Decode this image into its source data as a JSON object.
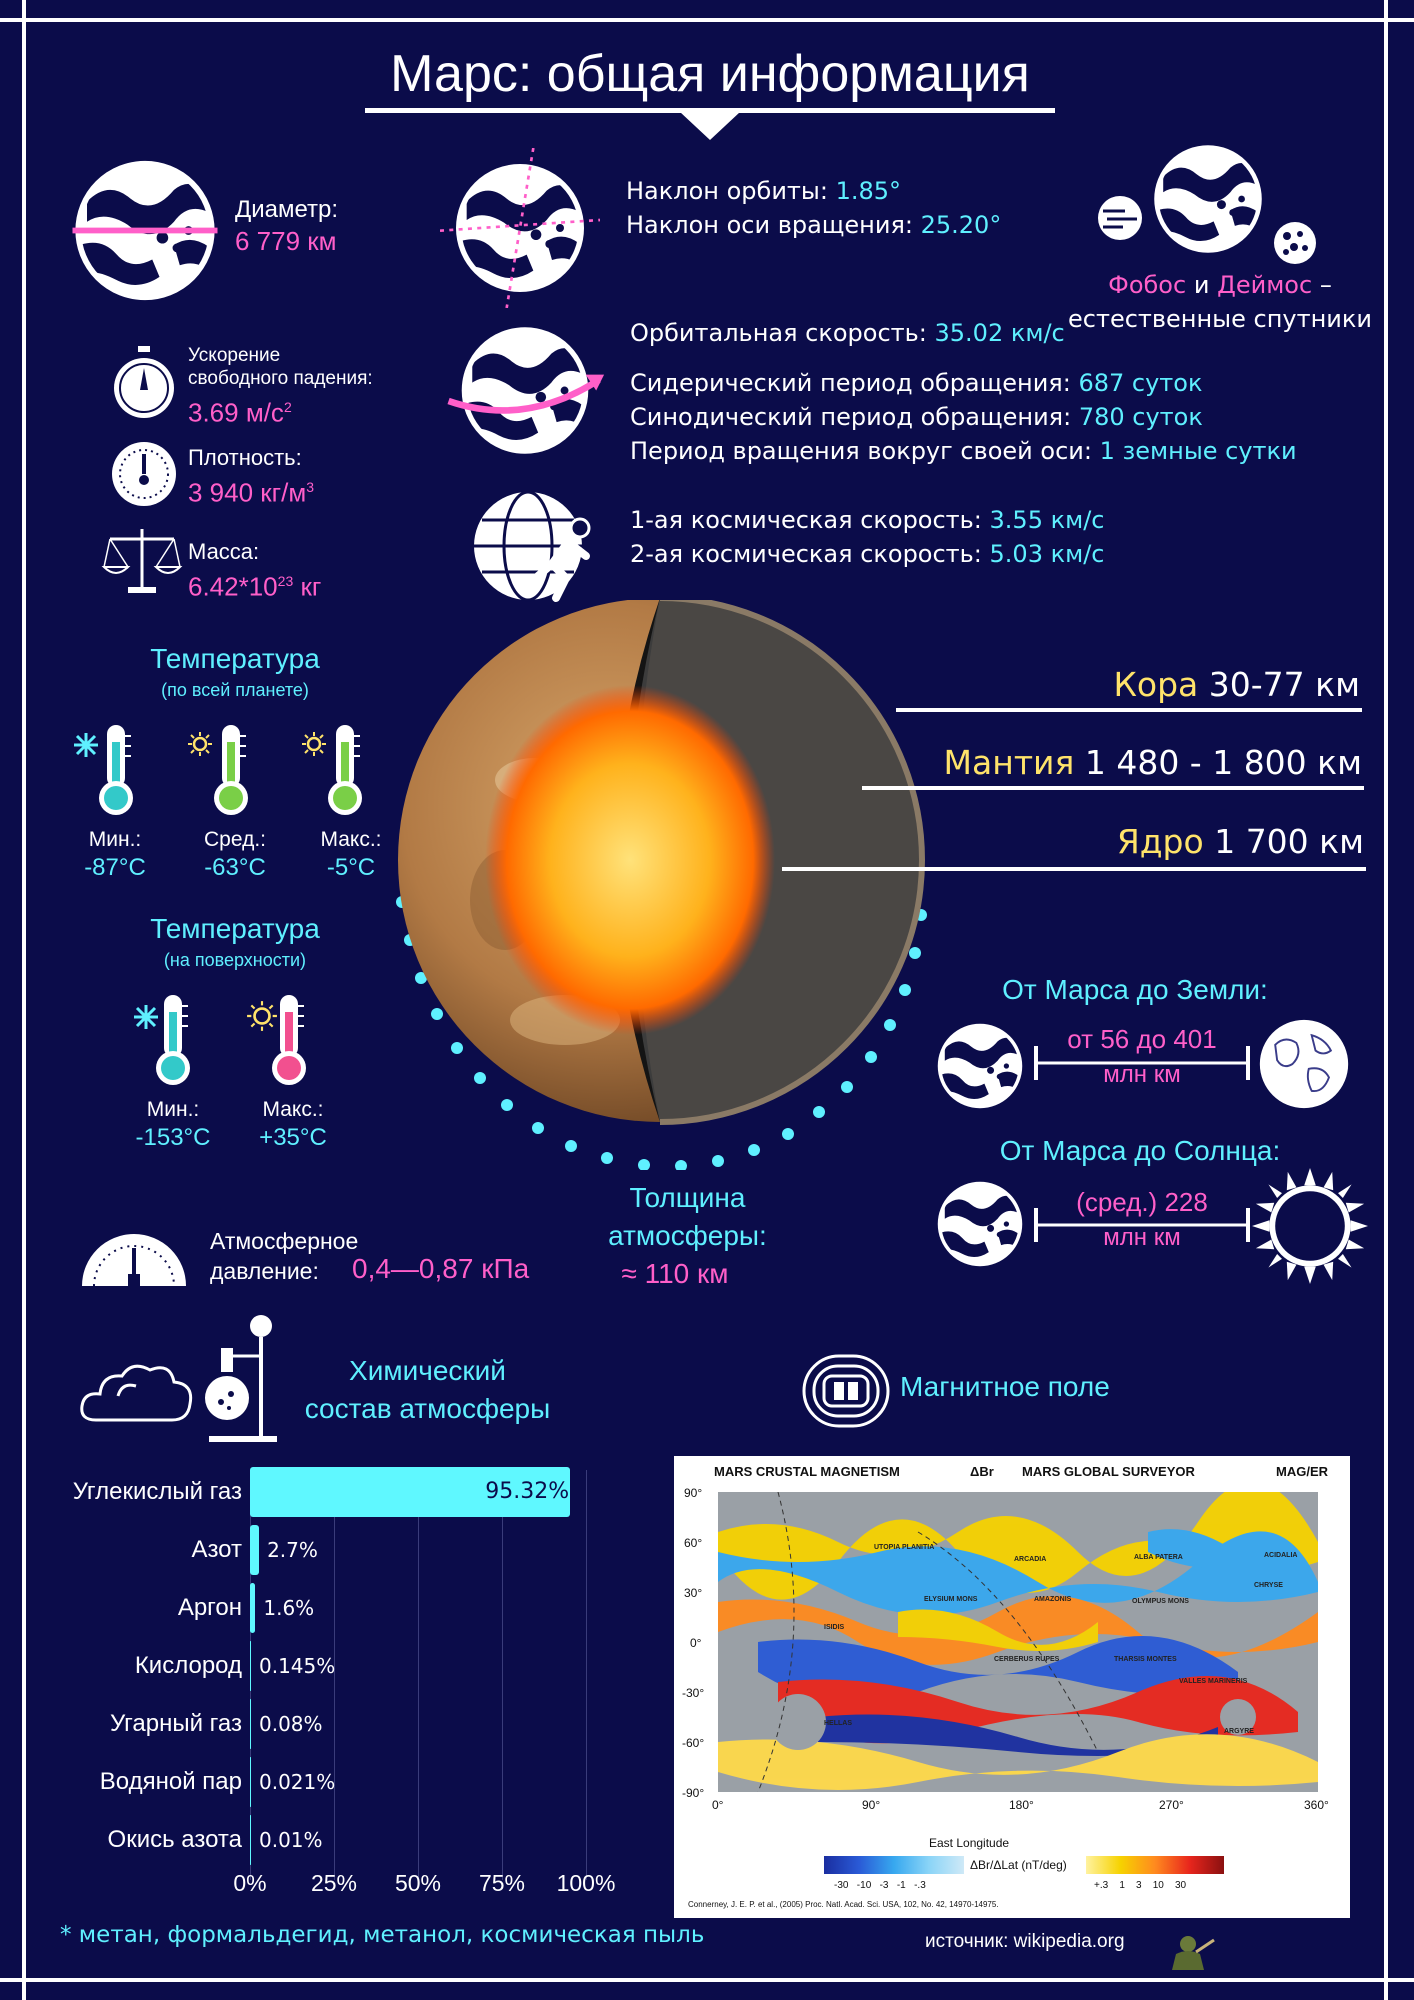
{
  "title": "Марс: общая информация",
  "diameter": {
    "label": "Диаметр:",
    "value": "6 779 км"
  },
  "orbit_tilt": {
    "label": "Наклон орбиты:",
    "value": "1.85°"
  },
  "axis_tilt": {
    "label": "Наклон оси вращения:",
    "value": "25.20°"
  },
  "moons": {
    "phobos": "Фобос",
    "and": "и",
    "deimos": "Деймос",
    "dash": "–",
    "text": "естественные спутники"
  },
  "gravity": {
    "label_line1": "Ускорение",
    "label_line2": "свободного падения:",
    "value": "3.69 м/с",
    "sup": "2"
  },
  "density": {
    "label": "Плотность:",
    "value": "3 940 кг/м",
    "sup": "3"
  },
  "mass": {
    "label": "Масса:",
    "value": "6.42*10",
    "sup": "23",
    "unit": "кг"
  },
  "orbital_speed": {
    "label": "Орбитальная скорость:",
    "value": "35.02 км/с"
  },
  "sidereal": {
    "label": "Сидерический период обращения:",
    "value": "687 суток"
  },
  "synodic": {
    "label": "Синодический период обращения:",
    "value": "780 суток"
  },
  "rotation": {
    "label": "Период вращения вокруг своей оси:",
    "value": "1 земные сутки"
  },
  "cosmic1": {
    "label": "1-ая космическая скорость:",
    "value": "3.55 км/с"
  },
  "cosmic2": {
    "label": "2-ая космическая скорость:",
    "value": "5.03 км/с"
  },
  "layers": [
    {
      "name": "Кора",
      "value": "30-77 км"
    },
    {
      "name": "Мантия",
      "value": "1 480 - 1 800 км"
    },
    {
      "name": "Ядро",
      "value": "1 700 км"
    }
  ],
  "temp_global": {
    "title": "Температура",
    "subtitle": "(по всей планете)",
    "items": [
      {
        "label": "Мин.:",
        "value": "-87°C",
        "color": "#33c9c9"
      },
      {
        "label": "Сред.:",
        "value": "-63°C",
        "color": "#7acf47"
      },
      {
        "label": "Макс.:",
        "value": "-5°C",
        "color": "#7acf47"
      }
    ]
  },
  "temp_surface": {
    "title": "Температура",
    "subtitle": "(на поверхности)",
    "items": [
      {
        "label": "Мин.:",
        "value": "-153°C",
        "color": "#33c9c9"
      },
      {
        "label": "Макс.:",
        "value": "+35°C",
        "color": "#f2508f"
      }
    ]
  },
  "earth_distance": {
    "title": "От Марса до Земли:",
    "line1": "от 56 до 401",
    "line2": "млн км"
  },
  "sun_distance": {
    "title": "От Марса до Солнца:",
    "line1": "(сред.) 228",
    "line2": "млн км"
  },
  "atm_thickness": {
    "line1": "Толщина",
    "line2": "атмосферы:",
    "line3": "≈ 110 км"
  },
  "pressure": {
    "line1": "Атмосферное",
    "line2": "давление:",
    "value": "0,4—0,87 кПа"
  },
  "chem_title": {
    "line1": "Химический",
    "line2": "состав атмосферы"
  },
  "magnetic_title": "Магнитное поле",
  "chart_data": {
    "type": "bar",
    "orientation": "horizontal",
    "categories": [
      "Углекислый газ",
      "Азот",
      "Аргон",
      "Кислород",
      "Угарный газ",
      "Водяной пар",
      "Окись азота"
    ],
    "values": [
      95.32,
      2.7,
      1.6,
      0.145,
      0.08,
      0.021,
      0.01
    ],
    "value_labels": [
      "95.32%",
      "2.7%",
      "1.6%",
      "0.145%",
      "0.08%",
      "0.021%",
      "0.01%"
    ],
    "xticks": [
      "0%",
      "25%",
      "50%",
      "75%",
      "100%"
    ],
    "xlim": [
      0,
      100
    ],
    "grid": true,
    "color": "#5ff8ff"
  },
  "footnote": "* метан, формальдегид, метанол, космическая пыль",
  "map": {
    "title_left": "MARS CRUSTAL MAGNETISM",
    "title_mid": "ΔBr",
    "title_right": "MARS GLOBAL SURVEYOR",
    "title_far": "MAG/ER",
    "y_ticks": [
      "90°",
      "60°",
      "30°",
      "0°",
      "-30°",
      "-60°",
      "-90°"
    ],
    "x_ticks": [
      "0°",
      "90°",
      "180°",
      "270°",
      "360°"
    ],
    "xlabel": "East Longitude",
    "legend_label": "ΔBr/ΔLat (nT/deg)",
    "legend_neg": [
      "-30",
      "-10",
      "-3",
      "-1",
      "-.3"
    ],
    "legend_pos": [
      "+.3",
      "1",
      "3",
      "10",
      "30"
    ],
    "regions": [
      "UTOPIA PLANITIA",
      "ELYSIUM MONS",
      "ARCADIA",
      "ALBA PATERA",
      "ACIDALIA",
      "AMAZONIS",
      "OLYMPUS MONS",
      "CHRYSE",
      "ISIDIS",
      "CERBERUS RUPES",
      "THARSIS MONTES",
      "VALLES MARINERIS",
      "HELLAS",
      "ARGYRE"
    ],
    "citation": "Connerney, J. E. P. et al., (2005) Proc. Natl. Acad. Sci. USA, 102, No. 42, 14970-14975."
  },
  "source": "источник: wikipedia.org"
}
